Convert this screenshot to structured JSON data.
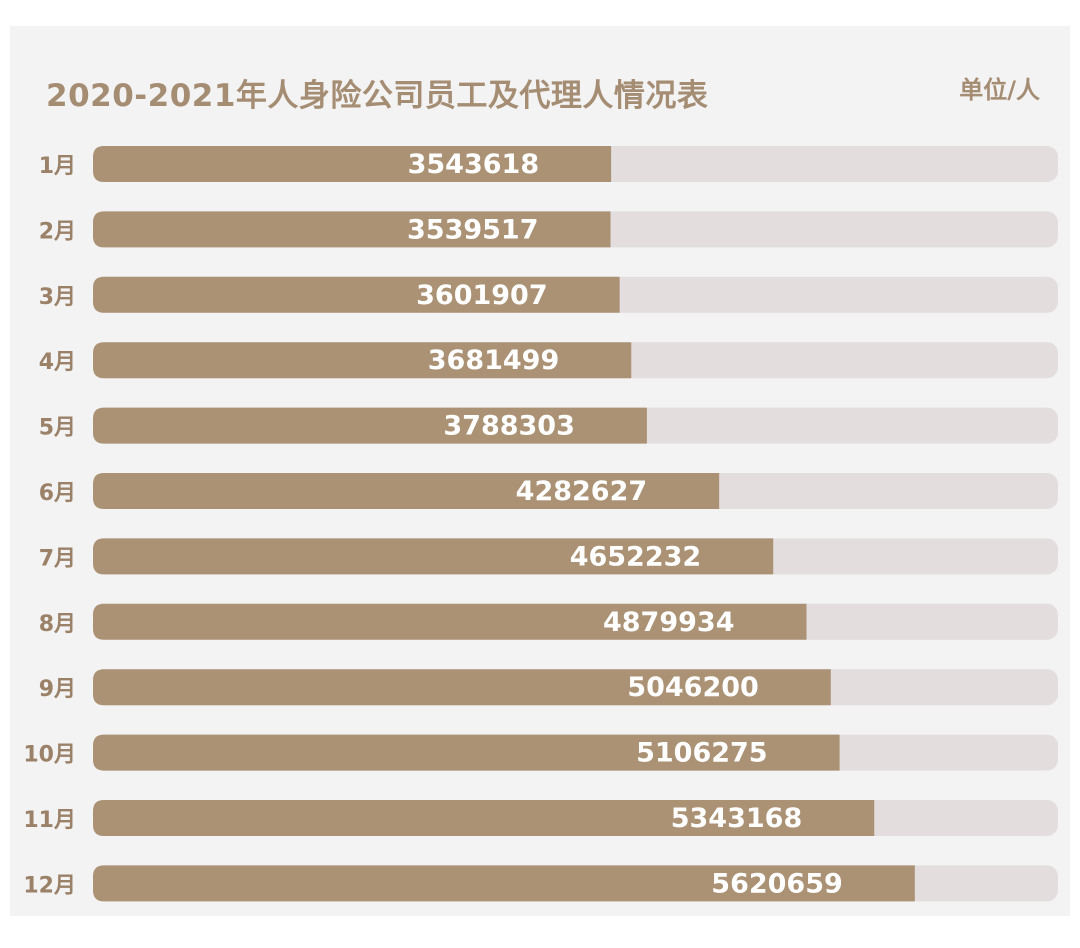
{
  "chart": {
    "title": "2020-2021年人身险公司员工及代理人情况表",
    "unit": "单位/人"
  },
  "colors": {
    "bar_fill": "#ab9275",
    "track": "#e3dddd",
    "label_text": "#ffffff",
    "axis_text": "#9a8168",
    "title_text": "#a58d74",
    "panel_bg": "#f3f3f3"
  },
  "chart_data": {
    "type": "bar",
    "orientation": "horizontal",
    "title": "2020-2021年人身险公司员工及代理人情况表",
    "unit": "单位/人",
    "categories": [
      "1月",
      "2月",
      "3月",
      "4月",
      "5月",
      "6月",
      "7月",
      "8月",
      "9月",
      "10月",
      "11月",
      "12月"
    ],
    "values": [
      3543618,
      3539517,
      3601907,
      3681499,
      3788303,
      4282627,
      4652232,
      4879934,
      5046200,
      5106275,
      5343168,
      5620659
    ],
    "xlim": [
      0,
      6600000
    ],
    "grid": false,
    "legend": "none"
  }
}
